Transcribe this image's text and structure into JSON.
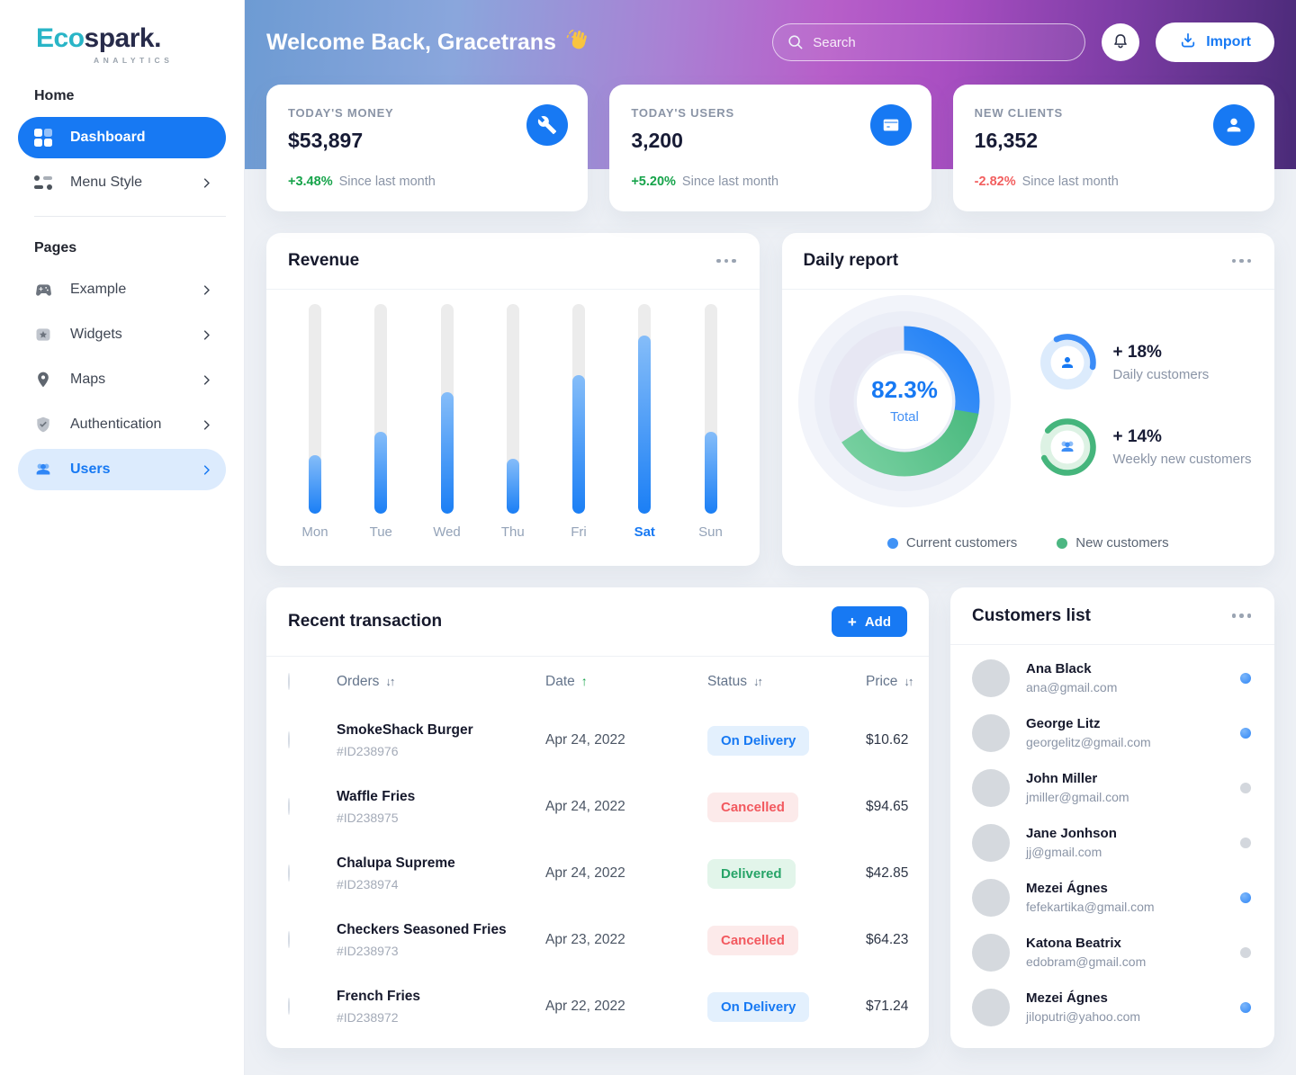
{
  "accent_color": "#1779f3",
  "positive_color": "#16a34a",
  "negative_color": "#f25f5f",
  "sidebar": {
    "logo": {
      "part1": "Eco",
      "part2": "spark.",
      "subtitle": "ANALYTICS"
    },
    "sections": [
      {
        "heading": "Home",
        "items": [
          {
            "label": "Dashboard",
            "icon": "dashboard-grid-icon",
            "active": true,
            "chevron": false
          },
          {
            "label": "Menu Style",
            "icon": "menu-style-icon",
            "active": false,
            "chevron": true
          }
        ]
      },
      {
        "heading": "Pages",
        "items": [
          {
            "label": "Example",
            "icon": "gamepad-icon",
            "chevron": true
          },
          {
            "label": "Widgets",
            "icon": "star-widget-icon",
            "chevron": true
          },
          {
            "label": "Maps",
            "icon": "map-pin-icon",
            "chevron": true
          },
          {
            "label": "Authentication",
            "icon": "shield-check-icon",
            "chevron": true
          },
          {
            "label": "Users",
            "icon": "users-icon",
            "chevron": true,
            "highlighted": true
          }
        ]
      }
    ]
  },
  "header": {
    "welcome": "Welcome Back, Gracetrans",
    "wave_icon": "waving-hand-icon",
    "search_placeholder": "Search",
    "import_label": "Import"
  },
  "stat_cards": [
    {
      "label": "TODAY'S MONEY",
      "value": "$53,897",
      "delta": "+3.48%",
      "direction": "up",
      "caption": "Since last month",
      "icon": "wrench-icon"
    },
    {
      "label": "TODAY'S USERS",
      "value": "3,200",
      "delta": "+5.20%",
      "direction": "up",
      "caption": "Since last month",
      "icon": "wallet-icon"
    },
    {
      "label": "NEW CLIENTS",
      "value": "16,352",
      "delta": "-2.82%",
      "direction": "down",
      "caption": "Since last month",
      "icon": "person-icon"
    }
  ],
  "revenue": {
    "title": "Revenue"
  },
  "daily_report": {
    "title": "Daily report",
    "total_pct": "82.3%",
    "total_label": "Total",
    "stats": [
      {
        "value": "+ 18%",
        "label": "Daily customers",
        "ring_color": "#3b8cf7",
        "ring_sweep_deg": 125,
        "ring_start_deg": -115,
        "icon": "person-icon"
      },
      {
        "value": "+ 14%",
        "label": "Weekly new customers",
        "ring_color": "#45b57c",
        "ring_sweep_deg": 295,
        "ring_start_deg": -140,
        "icon": "users-icon"
      }
    ],
    "legend": [
      {
        "label": "Current customers",
        "color": "#4193f6"
      },
      {
        "label": "New customers",
        "color": "#4cb782"
      }
    ]
  },
  "chart_data": [
    {
      "type": "bar",
      "title": "Revenue",
      "categories": [
        "Mon",
        "Tue",
        "Wed",
        "Thu",
        "Fri",
        "Sat",
        "Sun"
      ],
      "values": [
        28,
        39,
        58,
        26,
        66,
        85,
        39
      ],
      "highlight_category": "Sat",
      "xlabel": "",
      "ylabel": "",
      "ylim": [
        0,
        100
      ],
      "grid": false,
      "unit": "percent_of_track"
    },
    {
      "type": "pie",
      "variant": "donut",
      "title": "Daily report",
      "center_value": "82.3%",
      "center_label": "Total",
      "segments": [
        {
          "label": "Current customers",
          "color": "#2f88f6",
          "sweep_deg": 100
        },
        {
          "label": "New customers",
          "color": "#45b97c",
          "sweep_deg": 137
        }
      ],
      "legend_position": "bottom"
    }
  ],
  "transactions": {
    "title": "Recent transaction",
    "add_label": "Add",
    "columns": [
      {
        "label": "Orders",
        "sort": "both"
      },
      {
        "label": "Date",
        "sort": "asc"
      },
      {
        "label": "Status",
        "sort": "both"
      },
      {
        "label": "Price",
        "sort": "both"
      }
    ],
    "rows": [
      {
        "name": "SmokeShack Burger",
        "id": "#ID238976",
        "date": "Apr 24, 2022",
        "status": "On Delivery",
        "status_type": "delivery",
        "price": "$10.62"
      },
      {
        "name": "Waffle Fries",
        "id": "#ID238975",
        "date": "Apr 24, 2022",
        "status": "Cancelled",
        "status_type": "cancelled",
        "price": "$94.65"
      },
      {
        "name": "Chalupa Supreme",
        "id": "#ID238974",
        "date": "Apr 24, 2022",
        "status": "Delivered",
        "status_type": "delivered",
        "price": "$42.85"
      },
      {
        "name": "Checkers Seasoned Fries",
        "id": "#ID238973",
        "date": "Apr 23, 2022",
        "status": "Cancelled",
        "status_type": "cancelled",
        "price": "$64.23"
      },
      {
        "name": "French Fries",
        "id": "#ID238972",
        "date": "Apr 22, 2022",
        "status": "On Delivery",
        "status_type": "delivery",
        "price": "$71.24"
      }
    ]
  },
  "customers": {
    "title": "Customers list",
    "rows": [
      {
        "name": "Ana Black",
        "email": "ana@gmail.com",
        "online": true
      },
      {
        "name": "George Litz",
        "email": "georgelitz@gmail.com",
        "online": true
      },
      {
        "name": "John Miller",
        "email": "jmiller@gmail.com",
        "online": false
      },
      {
        "name": "Jane Jonhson",
        "email": "jj@gmail.com",
        "online": false
      },
      {
        "name": "Mezei Ágnes",
        "email": "fefekartika@gmail.com",
        "online": true
      },
      {
        "name": "Katona Beatrix",
        "email": "edobram@gmail.com",
        "online": false
      },
      {
        "name": "Mezei Ágnes",
        "email": "jiloputri@yahoo.com",
        "online": true
      }
    ]
  }
}
